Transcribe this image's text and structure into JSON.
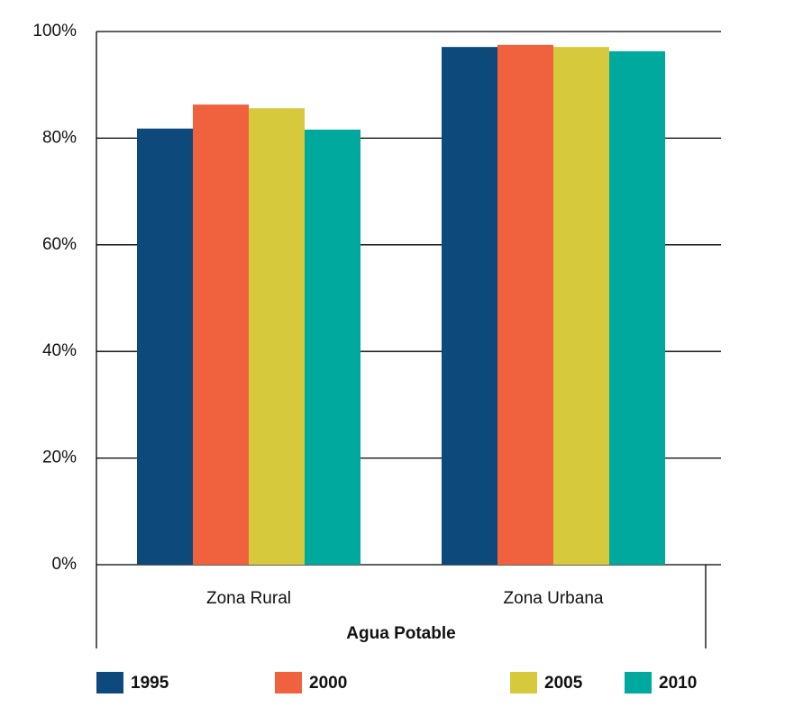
{
  "chart_data": {
    "type": "bar",
    "categories": [
      "Zona Rural",
      "Zona Urbana"
    ],
    "x_label": "Agua Potable",
    "series": [
      {
        "name": "1995",
        "color": "#0d4a7b",
        "values": [
          81.8,
          97.1
        ]
      },
      {
        "name": "2000",
        "color": "#f0623e",
        "values": [
          86.3,
          97.5
        ]
      },
      {
        "name": "2005",
        "color": "#d6c93b",
        "values": [
          85.6,
          97.1
        ]
      },
      {
        "name": "2010",
        "color": "#00a99e",
        "values": [
          81.6,
          96.3
        ]
      }
    ],
    "ylim": [
      0,
      100
    ],
    "yticks": [
      {
        "value": 0,
        "label": "0%"
      },
      {
        "value": 20,
        "label": "20%"
      },
      {
        "value": 40,
        "label": "40%"
      },
      {
        "value": 60,
        "label": "60%"
      },
      {
        "value": 80,
        "label": "80%"
      },
      {
        "value": 100,
        "label": "100%"
      }
    ],
    "grid": true,
    "legend": "bottom"
  }
}
